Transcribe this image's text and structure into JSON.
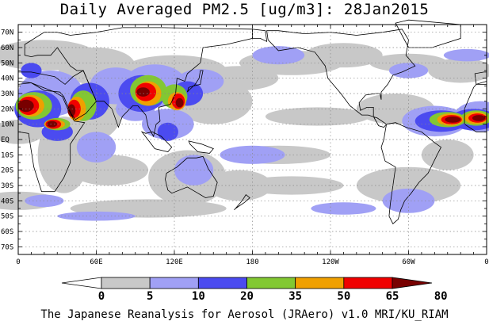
{
  "title": "Daily Averaged PM2.5 [ug/m3]: 28Jan2015",
  "credit": "The Japanese Reanalysis for Aerosol (JRAero) v1.0 MRI/KU_RIAM",
  "lat_labels": [
    "70N",
    "60N",
    "50N",
    "40N",
    "30N",
    "20N",
    "10N",
    "EQ",
    "10S",
    "20S",
    "30S",
    "40S",
    "50S",
    "60S",
    "70S"
  ],
  "lon_labels": [
    "0",
    "60E",
    "120E",
    "180",
    "120W",
    "60W",
    "0"
  ],
  "colorbar": {
    "levels": [
      "0",
      "5",
      "10",
      "20",
      "35",
      "50",
      "65",
      "80"
    ],
    "colors": [
      "#ffffff",
      "#c8c8c8",
      "#a0a0f5",
      "#4b4bf0",
      "#82c832",
      "#f0a000",
      "#f00000",
      "#780000"
    ]
  },
  "palette": {
    "ocean": "#ffffff",
    "grid": "#888888"
  }
}
